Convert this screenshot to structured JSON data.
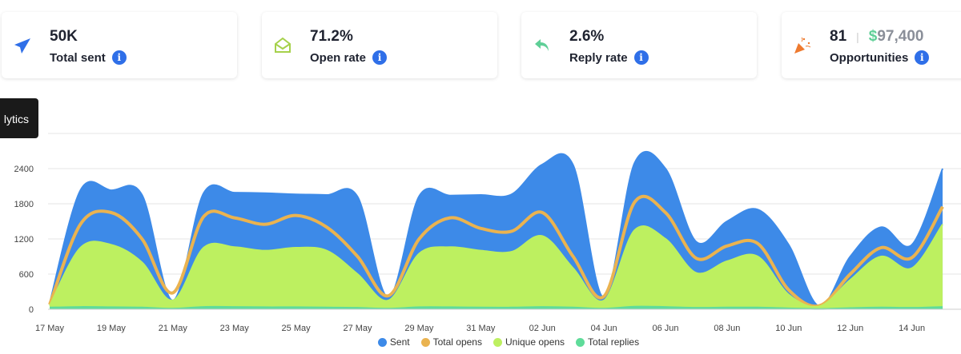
{
  "cards": [
    {
      "value": "50K",
      "label": "Total sent",
      "icon": "paper-plane-icon",
      "color": "#2f6fe8"
    },
    {
      "value": "71.2%",
      "label": "Open rate",
      "icon": "open-envelope-icon",
      "color": "#a6d14b"
    },
    {
      "value": "2.6%",
      "label": "Reply rate",
      "icon": "reply-arrow-icon",
      "color": "#5fcf97"
    },
    {
      "value": "81",
      "amount_symbol": "$",
      "amount": "97,400",
      "label": "Opportunities",
      "icon": "party-popper-icon",
      "color": "#ee7a2f"
    }
  ],
  "info_glyph": "i",
  "tooltip": "lytics",
  "chart_data": {
    "type": "area",
    "ylim": [
      0,
      3000
    ],
    "yticks": [
      0,
      600,
      1200,
      1800,
      2400,
      3000
    ],
    "xticks": [
      "17 May",
      "19 May",
      "21 May",
      "23 May",
      "25 May",
      "27 May",
      "29 May",
      "31 May",
      "02 Jun",
      "04 Jun",
      "06 Jun",
      "08 Jun",
      "10 Jun",
      "12 Jun",
      "14 Jun"
    ],
    "x": [
      "17 May",
      "18 May",
      "19 May",
      "20 May",
      "21 May",
      "22 May",
      "23 May",
      "24 May",
      "25 May",
      "26 May",
      "27 May",
      "28 May",
      "29 May",
      "30 May",
      "31 May",
      "01 Jun",
      "02 Jun",
      "03 Jun",
      "04 Jun",
      "05 Jun",
      "06 Jun",
      "07 Jun",
      "08 Jun",
      "09 Jun",
      "10 Jun",
      "11 Jun",
      "12 Jun",
      "13 Jun",
      "14 Jun",
      "15 Jun"
    ],
    "series": [
      {
        "name": "Sent",
        "color": "#3d8ae8",
        "values": [
          100,
          2030,
          2030,
          1950,
          150,
          1980,
          1990,
          1980,
          1960,
          1950,
          1920,
          200,
          1930,
          1940,
          1950,
          1960,
          2470,
          2460,
          200,
          2500,
          2400,
          1150,
          1500,
          1700,
          1100,
          50,
          900,
          1400,
          1100,
          2400
        ]
      },
      {
        "name": "Total opens",
        "color": "#eab350",
        "values": [
          80,
          1450,
          1650,
          1200,
          280,
          1580,
          1560,
          1450,
          1600,
          1400,
          900,
          230,
          1200,
          1560,
          1380,
          1330,
          1650,
          900,
          220,
          1830,
          1650,
          870,
          1080,
          1120,
          330,
          60,
          600,
          1050,
          880,
          1750
        ]
      },
      {
        "name": "Unique opens",
        "color": "#bdf060",
        "values": [
          60,
          1050,
          1100,
          800,
          150,
          1050,
          1060,
          1000,
          1050,
          1000,
          600,
          150,
          950,
          1060,
          1000,
          980,
          1250,
          700,
          150,
          1350,
          1200,
          620,
          820,
          900,
          250,
          50,
          500,
          900,
          700,
          1450
        ]
      },
      {
        "name": "Total replies",
        "color": "#5fdc9a",
        "values": [
          30,
          40,
          35,
          30,
          10,
          40,
          40,
          35,
          35,
          30,
          25,
          10,
          35,
          35,
          30,
          30,
          40,
          30,
          10,
          45,
          40,
          25,
          30,
          30,
          15,
          5,
          20,
          30,
          25,
          40
        ]
      }
    ]
  }
}
